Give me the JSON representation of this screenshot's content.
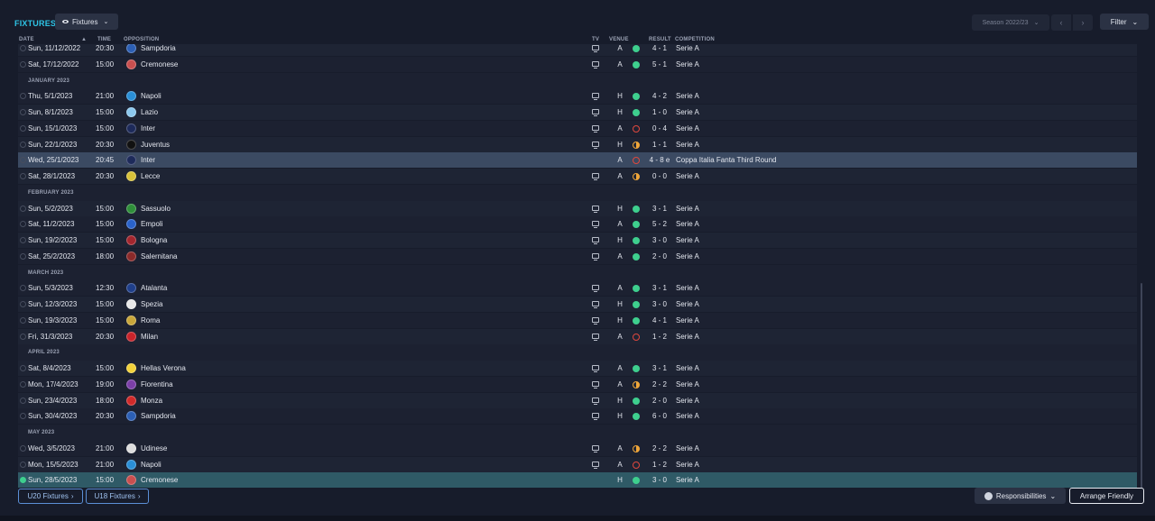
{
  "header": {
    "title": "FIXTURES",
    "view_label": "Fixtures",
    "season_label": "Season 2022/23",
    "filter_label": "Filter"
  },
  "columns": {
    "date": "DATE",
    "time": "TIME",
    "opposition": "OPPOSITION",
    "tv": "TV",
    "venue": "VENUE",
    "result": "RESULT",
    "competition": "COMPETITION"
  },
  "months": [
    "JANUARY 2023",
    "FEBRUARY 2023",
    "MARCH 2023",
    "APRIL 2023",
    "MAY 2023"
  ],
  "fixtures": [
    {
      "date": "Sun, 11/12/2022",
      "time": "20:30",
      "opp": "Sampdoria",
      "crest": "#2c5fb4",
      "tv": true,
      "venue": "A",
      "outcome": "W",
      "score": "4 - 1",
      "comp": "Serie A"
    },
    {
      "date": "Sat, 17/12/2022",
      "time": "15:00",
      "opp": "Cremonese",
      "crest": "#c94f4f",
      "tv": true,
      "venue": "A",
      "outcome": "W",
      "score": "5 - 1",
      "comp": "Serie A"
    },
    {
      "date": "Thu, 5/1/2023",
      "time": "21:00",
      "opp": "Napoli",
      "crest": "#2a8fd6",
      "tv": true,
      "venue": "H",
      "outcome": "W",
      "score": "4 - 2",
      "comp": "Serie A"
    },
    {
      "date": "Sun, 8/1/2023",
      "time": "15:00",
      "opp": "Lazio",
      "crest": "#8cc8ee",
      "tv": true,
      "venue": "H",
      "outcome": "W",
      "score": "1 - 0",
      "comp": "Serie A"
    },
    {
      "date": "Sun, 15/1/2023",
      "time": "15:00",
      "opp": "Inter",
      "crest": "#1d2a5a",
      "tv": true,
      "venue": "A",
      "outcome": "L",
      "score": "0 - 4",
      "comp": "Serie A"
    },
    {
      "date": "Sun, 22/1/2023",
      "time": "20:30",
      "opp": "Juventus",
      "crest": "#111111",
      "tv": true,
      "venue": "H",
      "outcome": "D",
      "score": "1 - 1",
      "comp": "Serie A"
    },
    {
      "date": "Wed, 25/1/2023",
      "time": "20:45",
      "opp": "Inter",
      "crest": "#1d2a5a",
      "tv": false,
      "venue": "A",
      "outcome": "L",
      "score": "4 - 8 e",
      "comp": "Coppa Italia Fanta Third Round"
    },
    {
      "date": "Sat, 28/1/2023",
      "time": "20:30",
      "opp": "Lecce",
      "crest": "#d8c23a",
      "tv": true,
      "venue": "A",
      "outcome": "D",
      "score": "0 - 0",
      "comp": "Serie A"
    },
    {
      "date": "Sun, 5/2/2023",
      "time": "15:00",
      "opp": "Sassuolo",
      "crest": "#2f8f3a",
      "tv": true,
      "venue": "H",
      "outcome": "W",
      "score": "3 - 1",
      "comp": "Serie A"
    },
    {
      "date": "Sat, 11/2/2023",
      "time": "15:00",
      "opp": "Empoli",
      "crest": "#2a62c9",
      "tv": true,
      "venue": "A",
      "outcome": "W",
      "score": "5 - 2",
      "comp": "Serie A"
    },
    {
      "date": "Sun, 19/2/2023",
      "time": "15:00",
      "opp": "Bologna",
      "crest": "#a3262e",
      "tv": true,
      "venue": "H",
      "outcome": "W",
      "score": "3 - 0",
      "comp": "Serie A"
    },
    {
      "date": "Sat, 25/2/2023",
      "time": "18:00",
      "opp": "Salernitana",
      "crest": "#8b2a2a",
      "tv": true,
      "venue": "A",
      "outcome": "W",
      "score": "2 - 0",
      "comp": "Serie A"
    },
    {
      "date": "Sun, 5/3/2023",
      "time": "12:30",
      "opp": "Atalanta",
      "crest": "#1f3f8a",
      "tv": true,
      "venue": "A",
      "outcome": "W",
      "score": "3 - 1",
      "comp": "Serie A"
    },
    {
      "date": "Sun, 12/3/2023",
      "time": "15:00",
      "opp": "Spezia",
      "crest": "#e8e8e8",
      "tv": true,
      "venue": "H",
      "outcome": "W",
      "score": "3 - 0",
      "comp": "Serie A"
    },
    {
      "date": "Sun, 19/3/2023",
      "time": "15:00",
      "opp": "Roma",
      "crest": "#c8a63a",
      "tv": true,
      "venue": "H",
      "outcome": "W",
      "score": "4 - 1",
      "comp": "Serie A"
    },
    {
      "date": "Fri, 31/3/2023",
      "time": "20:30",
      "opp": "Milan",
      "crest": "#c8242b",
      "tv": true,
      "venue": "A",
      "outcome": "L",
      "score": "1 - 2",
      "comp": "Serie A"
    },
    {
      "date": "Sat, 8/4/2023",
      "time": "15:00",
      "opp": "Hellas Verona",
      "crest": "#f2d23a",
      "tv": true,
      "venue": "A",
      "outcome": "W",
      "score": "3 - 1",
      "comp": "Serie A"
    },
    {
      "date": "Mon, 17/4/2023",
      "time": "19:00",
      "opp": "Fiorentina",
      "crest": "#7b3fa8",
      "tv": true,
      "venue": "A",
      "outcome": "D",
      "score": "2 - 2",
      "comp": "Serie A"
    },
    {
      "date": "Sun, 23/4/2023",
      "time": "18:00",
      "opp": "Monza",
      "crest": "#d02a2a",
      "tv": true,
      "venue": "H",
      "outcome": "W",
      "score": "2 - 0",
      "comp": "Serie A"
    },
    {
      "date": "Sun, 30/4/2023",
      "time": "20:30",
      "opp": "Sampdoria",
      "crest": "#2c5fb4",
      "tv": true,
      "venue": "H",
      "outcome": "W",
      "score": "6 - 0",
      "comp": "Serie A"
    },
    {
      "date": "Wed, 3/5/2023",
      "time": "21:00",
      "opp": "Udinese",
      "crest": "#dddddd",
      "tv": true,
      "venue": "A",
      "outcome": "D",
      "score": "2 - 2",
      "comp": "Serie A"
    },
    {
      "date": "Mon, 15/5/2023",
      "time": "21:00",
      "opp": "Napoli",
      "crest": "#2a8fd6",
      "tv": true,
      "venue": "A",
      "outcome": "L",
      "score": "1 - 2",
      "comp": "Serie A"
    },
    {
      "date": "Sun, 28/5/2023",
      "time": "15:00",
      "opp": "Cremonese",
      "crest": "#c94f4f",
      "tv": false,
      "venue": "H",
      "outcome": "W",
      "score": "3 - 0",
      "comp": "Serie A"
    }
  ],
  "footer": {
    "u20_label": "U20 Fixtures",
    "u18_label": "U18 Fixtures",
    "responsibilities_label": "Responsibilities",
    "arrange_label": "Arrange Friendly"
  },
  "colors": {
    "accent": "#2ec4e6",
    "win": "#3ecf8e",
    "loss": "#e0483e",
    "draw": "#f0a63a"
  }
}
